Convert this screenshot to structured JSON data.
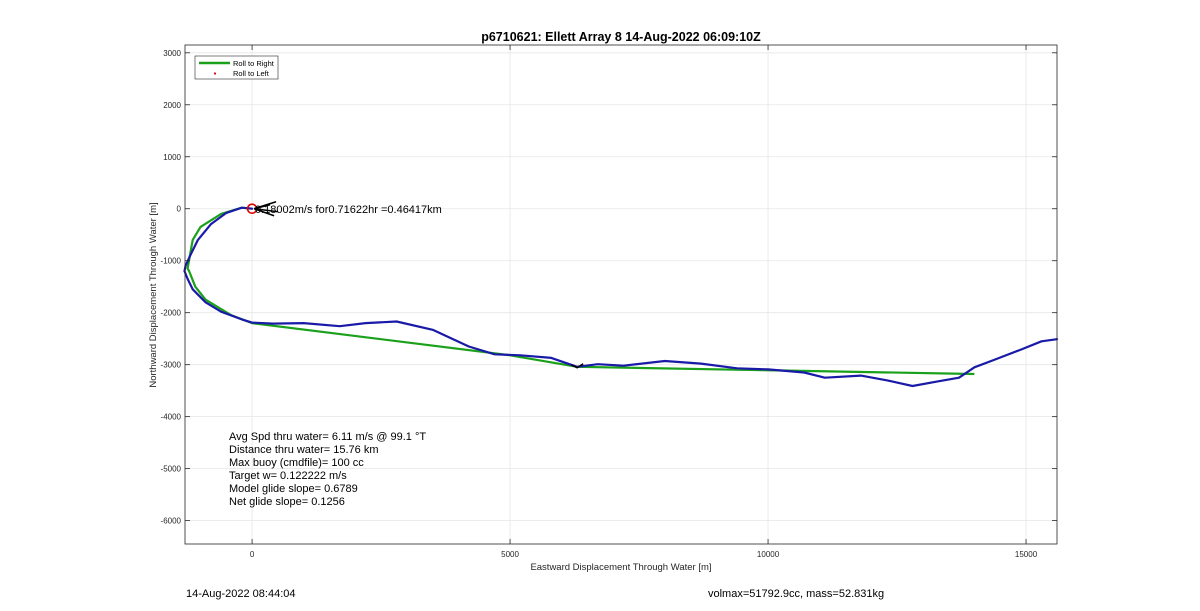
{
  "chart_data": {
    "type": "line",
    "title": "p6710621: Ellett Array 8 14-Aug-2022 06:09:10Z",
    "xlabel": "Eastward Displacement Through Water [m]",
    "ylabel": "Northward Displacement Through Water [m]",
    "xlim": [
      -1300,
      15600
    ],
    "ylim": [
      -6450,
      3150
    ],
    "xticks": [
      0,
      5000,
      10000,
      15000
    ],
    "yticks": [
      3000,
      2000,
      1000,
      0,
      -1000,
      -2000,
      -3000,
      -4000,
      -5000,
      -6000
    ],
    "grid": true,
    "legend_position": "top-left",
    "colors": {
      "roll_right": "#1aa01a",
      "roll_left": "#e00000",
      "track": "#1a1aa8",
      "axes": "#262626",
      "grid": "#e6e6e6"
    },
    "series": [
      {
        "name": "Roll to Right",
        "kind": "line",
        "x": [
          0,
          -200,
          -600,
          -1000,
          -1150,
          -1250,
          -1220,
          -1100,
          -900,
          -400,
          0,
          5000,
          6300,
          14000
        ],
        "y": [
          0,
          20,
          -100,
          -350,
          -600,
          -1150,
          -1200,
          -1500,
          -1750,
          -2050,
          -2200,
          -2820,
          -3040,
          -3180
        ]
      },
      {
        "name": "Roll to Left",
        "kind": "marker",
        "x": [
          0
        ],
        "y": [
          0
        ]
      },
      {
        "name": "",
        "kind": "line",
        "x": [
          0,
          -200,
          -500,
          -800,
          -1050,
          -1200,
          -1290,
          -1310,
          -1250,
          -1150,
          -900,
          -600,
          -200,
          0,
          400,
          1000,
          1700,
          2200,
          2800,
          3500,
          4200,
          4700,
          5200,
          5800,
          6300,
          6700,
          7200,
          8000,
          8700,
          9400,
          10000,
          10700,
          11100,
          11800,
          12300,
          12800,
          13300,
          13700,
          14000,
          14400,
          14900,
          15300,
          15600
        ],
        "y": [
          0,
          20,
          -80,
          -300,
          -600,
          -900,
          -1100,
          -1200,
          -1350,
          -1550,
          -1800,
          -1980,
          -2130,
          -2190,
          -2210,
          -2200,
          -2260,
          -2200,
          -2170,
          -2330,
          -2650,
          -2800,
          -2820,
          -2870,
          -3040,
          -2990,
          -3020,
          -2930,
          -2980,
          -3070,
          -3090,
          -3150,
          -3250,
          -3210,
          -3300,
          -3410,
          -3320,
          -3250,
          -3050,
          -2900,
          -2710,
          -2550,
          -2510
        ]
      }
    ],
    "annotation": "0.18002m/s for0.71622hr =0.46417km",
    "stats": [
      "Avg Spd thru water=  6.11 m/s @  99.1 °T",
      "Distance thru water= 15.76 km",
      "Max buoy (cmdfile)= 100 cc",
      "Target w= 0.122222 m/s",
      "Model glide slope= 0.6789",
      "Net glide slope= 0.1256"
    ]
  },
  "footer": {
    "left": "14-Aug-2022 08:44:04",
    "right": "volmax=51792.9cc, mass=52.831kg"
  }
}
